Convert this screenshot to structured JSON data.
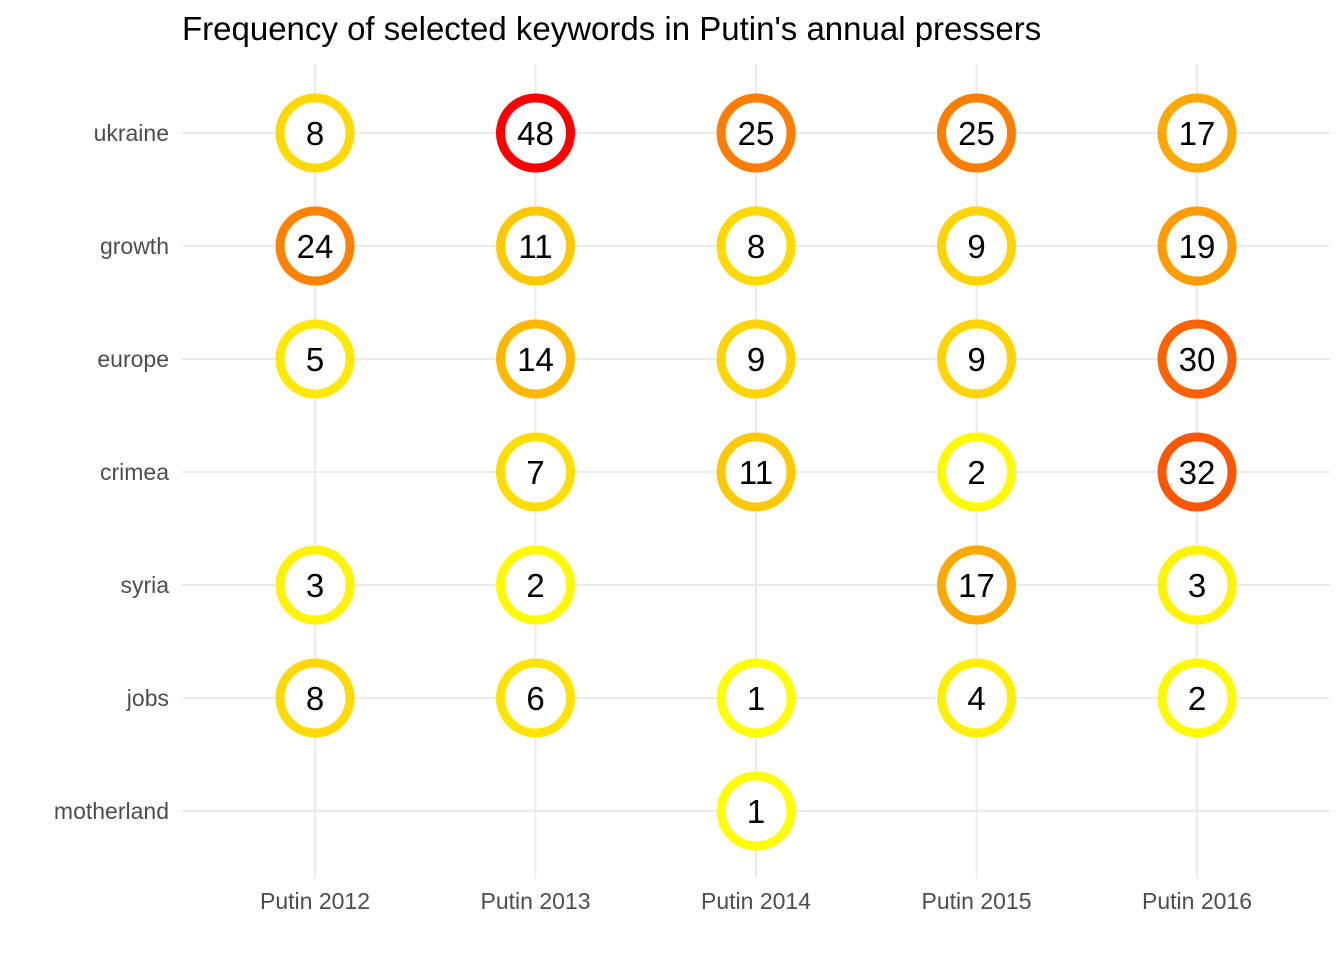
{
  "chart_data": {
    "type": "scatter",
    "title": "Frequency of selected keywords in Putin's annual pressers",
    "xlabel": "",
    "ylabel": "",
    "x_categories": [
      "Putin 2012",
      "Putin 2013",
      "Putin 2014",
      "Putin 2015",
      "Putin 2016"
    ],
    "y_categories": [
      "ukraine",
      "growth",
      "europe",
      "crimea",
      "syria",
      "jobs",
      "motherland"
    ],
    "grid": true,
    "legend": "none",
    "color_scale": {
      "low": "#ffff00",
      "high": "#ff0000",
      "domain": [
        1,
        48
      ]
    },
    "points": [
      {
        "x": "Putin 2012",
        "y": "ukraine",
        "value": 8
      },
      {
        "x": "Putin 2013",
        "y": "ukraine",
        "value": 48
      },
      {
        "x": "Putin 2014",
        "y": "ukraine",
        "value": 25
      },
      {
        "x": "Putin 2015",
        "y": "ukraine",
        "value": 25
      },
      {
        "x": "Putin 2016",
        "y": "ukraine",
        "value": 17
      },
      {
        "x": "Putin 2012",
        "y": "growth",
        "value": 24
      },
      {
        "x": "Putin 2013",
        "y": "growth",
        "value": 11
      },
      {
        "x": "Putin 2014",
        "y": "growth",
        "value": 8
      },
      {
        "x": "Putin 2015",
        "y": "growth",
        "value": 9
      },
      {
        "x": "Putin 2016",
        "y": "growth",
        "value": 19
      },
      {
        "x": "Putin 2012",
        "y": "europe",
        "value": 5
      },
      {
        "x": "Putin 2013",
        "y": "europe",
        "value": 14
      },
      {
        "x": "Putin 2014",
        "y": "europe",
        "value": 9
      },
      {
        "x": "Putin 2015",
        "y": "europe",
        "value": 9
      },
      {
        "x": "Putin 2016",
        "y": "europe",
        "value": 30
      },
      {
        "x": "Putin 2013",
        "y": "crimea",
        "value": 7
      },
      {
        "x": "Putin 2014",
        "y": "crimea",
        "value": 11
      },
      {
        "x": "Putin 2015",
        "y": "crimea",
        "value": 2
      },
      {
        "x": "Putin 2016",
        "y": "crimea",
        "value": 32
      },
      {
        "x": "Putin 2012",
        "y": "syria",
        "value": 3
      },
      {
        "x": "Putin 2013",
        "y": "syria",
        "value": 2
      },
      {
        "x": "Putin 2015",
        "y": "syria",
        "value": 17
      },
      {
        "x": "Putin 2016",
        "y": "syria",
        "value": 3
      },
      {
        "x": "Putin 2012",
        "y": "jobs",
        "value": 8
      },
      {
        "x": "Putin 2013",
        "y": "jobs",
        "value": 6
      },
      {
        "x": "Putin 2014",
        "y": "jobs",
        "value": 1
      },
      {
        "x": "Putin 2015",
        "y": "jobs",
        "value": 4
      },
      {
        "x": "Putin 2016",
        "y": "jobs",
        "value": 2
      },
      {
        "x": "Putin 2014",
        "y": "motherland",
        "value": 1
      }
    ]
  }
}
